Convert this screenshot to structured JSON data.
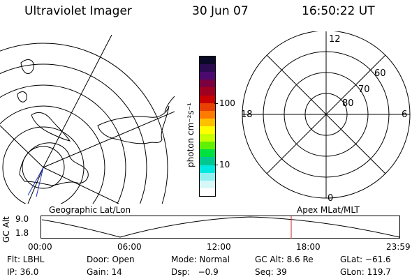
{
  "header": {
    "instrument": "Ultraviolet Imager",
    "date": "30 Jun 07",
    "time": "16:50:22 UT"
  },
  "colorbar": {
    "unit_label": "photon cm⁻²s⁻¹",
    "ticks": [
      "100",
      "10"
    ],
    "colors": [
      "#0a0a28",
      "#2a0a50",
      "#4a0a70",
      "#7a0040",
      "#a00020",
      "#c80000",
      "#e84000",
      "#ff7a00",
      "#ffc000",
      "#ffff00",
      "#c8ff00",
      "#60f000",
      "#00e040",
      "#00c890",
      "#00e8e0",
      "#90f0f0",
      "#d8f8f8",
      "#ffffff"
    ]
  },
  "left_map": {
    "label": "Geographic Lat/Lon"
  },
  "right_map": {
    "label": "Apex MLat/MLT",
    "mlt_labels": {
      "top": "12",
      "left": "18",
      "right": "6",
      "bottom": "0"
    },
    "lat_labels": [
      "60",
      "70",
      "80"
    ]
  },
  "timeline": {
    "axis_label": "GC Alt",
    "y_labels": [
      "9.0",
      "1.8"
    ],
    "x_labels": [
      "00:00",
      "06:00",
      "12:00",
      "18:00",
      "23:59"
    ],
    "marker_color": "#d02020"
  },
  "status": {
    "row1": [
      "Flt: LBHL",
      "Door: Open",
      "Mode: Normal",
      "GC Alt: 8.6 Re",
      "GLat: −61.6"
    ],
    "row2": [
      "IP: 36.0",
      "Gain: 14",
      "Dsp:   −0.9",
      "Seq: 39",
      "GLon: 119.7"
    ]
  }
}
